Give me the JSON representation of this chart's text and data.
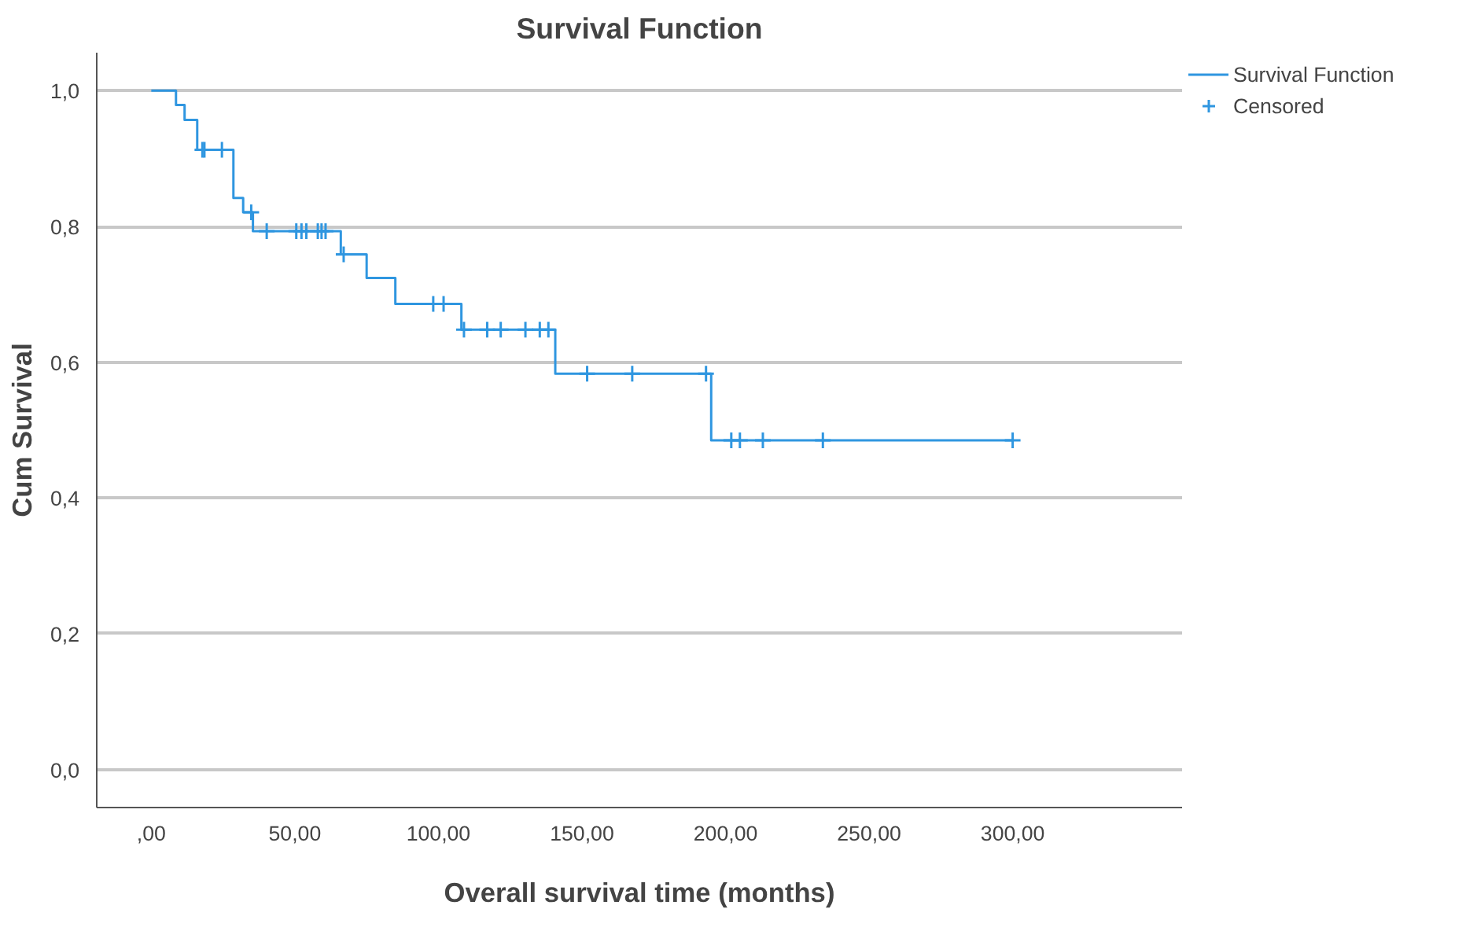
{
  "chart_data": {
    "type": "step",
    "title": "Survival Function",
    "xlabel": "Overall survival time (months)",
    "ylabel": "Cum Survival",
    "xlim": [
      -19,
      359
    ],
    "ylim": [
      -0.056,
      1.056
    ],
    "xticks": [
      {
        "value": 0,
        "label": ",00"
      },
      {
        "value": 50,
        "label": "50,00"
      },
      {
        "value": 100,
        "label": "100,00"
      },
      {
        "value": 150,
        "label": "150,00"
      },
      {
        "value": 200,
        "label": "200,00"
      },
      {
        "value": 250,
        "label": "250,00"
      },
      {
        "value": 300,
        "label": "300,00"
      }
    ],
    "yticks": [
      {
        "value": 0,
        "label": "0,0"
      },
      {
        "value": 0.2,
        "label": "0,2"
      },
      {
        "value": 0.4,
        "label": "0,4"
      },
      {
        "value": 0.6,
        "label": "0,6"
      },
      {
        "value": 0.8,
        "label": "0,8"
      },
      {
        "value": 1,
        "label": "1,0"
      }
    ],
    "grid": "y",
    "legend": "top right",
    "series": [
      {
        "name": "Survival Function",
        "color": "#2f96e0",
        "marker": "none",
        "x": [
          0,
          8.6,
          11.6,
          16,
          28.6,
          32,
          35.4,
          66,
          75,
          85,
          108,
          140.7,
          195,
          300
        ],
        "values": [
          1,
          0.979,
          0.957,
          0.913,
          0.842,
          0.821,
          0.793,
          0.759,
          0.724,
          0.686,
          0.648,
          0.583,
          0.485,
          0.485
        ]
      },
      {
        "name": "Censored",
        "type": "scatter",
        "color": "#2f96e0",
        "marker": "cross",
        "x": [
          17.8,
          18.5,
          24.6,
          34.8,
          40.2,
          50.5,
          52.3,
          54,
          58,
          59.3,
          60.7,
          67,
          98.2,
          101.8,
          108.9,
          117,
          121.7,
          130.3,
          135.3,
          138.3,
          151.8,
          167.5,
          193.2,
          202,
          205,
          213,
          233.9,
          300
        ],
        "values": [
          0.913,
          0.913,
          0.913,
          0.821,
          0.793,
          0.793,
          0.793,
          0.793,
          0.793,
          0.793,
          0.793,
          0.759,
          0.686,
          0.686,
          0.648,
          0.648,
          0.648,
          0.648,
          0.648,
          0.648,
          0.583,
          0.583,
          0.583,
          0.485,
          0.485,
          0.485,
          0.485,
          0.485
        ]
      }
    ]
  }
}
